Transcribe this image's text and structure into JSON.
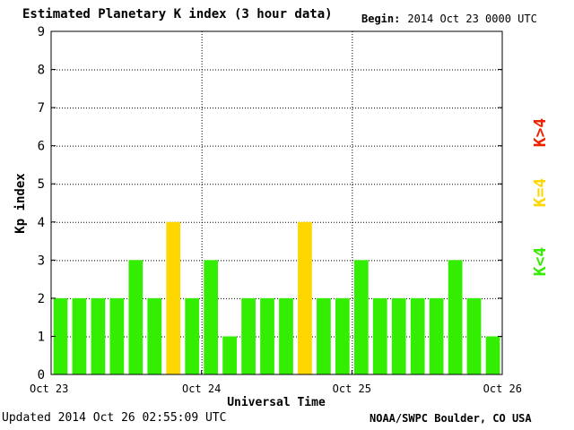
{
  "title": "Estimated Planetary K index (3 hour data)",
  "begin": {
    "label": "Begin:",
    "value": "2014 Oct 23 0000 UTC"
  },
  "updated": {
    "label": "Updated",
    "value": "2014 Oct 26 02:55:09 UTC"
  },
  "credit": "NOAA/SWPC Boulder, CO USA",
  "colors": {
    "low": "#33ee00",
    "mid": "#ffd700",
    "high": "#ee2200",
    "grid": "#000000"
  },
  "chart_data": {
    "type": "bar",
    "title": "Estimated Planetary K index (3 hour data)",
    "xlabel": "Universal Time",
    "ylabel": "Kp index",
    "ylim": [
      0,
      9
    ],
    "yticks": [
      0,
      1,
      2,
      3,
      4,
      5,
      6,
      7,
      8,
      9
    ],
    "xticks": [
      "Oct 23",
      "Oct 24",
      "Oct 25",
      "Oct 26"
    ],
    "grid": true,
    "values": [
      2,
      2,
      2,
      2,
      3,
      2,
      4,
      2,
      3,
      1,
      2,
      2,
      2,
      4,
      2,
      2,
      3,
      2,
      2,
      2,
      2,
      3,
      2,
      1
    ],
    "legend": [
      {
        "label": "K<4",
        "color": "#33ee00"
      },
      {
        "label": "K=4",
        "color": "#ffd700"
      },
      {
        "label": "K>4",
        "color": "#ee2200"
      }
    ],
    "legend_position": "right"
  }
}
